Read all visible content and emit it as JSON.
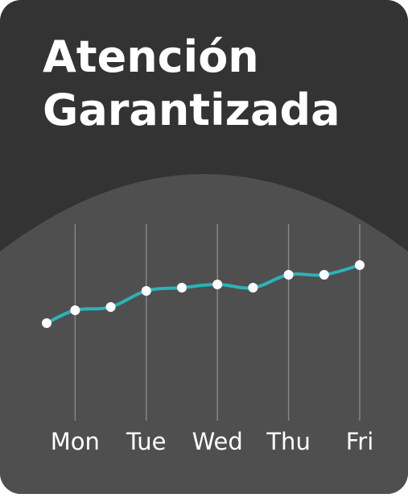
{
  "card": {
    "title_line1": "Atención",
    "title_line2": "Garantizada"
  },
  "colors": {
    "background": "#333333",
    "plot_area": "#4f4f4f",
    "line": "#2bb3b8",
    "points": "#ffffff",
    "gridlines": "#8a8a8a"
  },
  "chart_data": {
    "type": "line",
    "title": "",
    "xlabel": "",
    "ylabel": "",
    "x_ticks": [
      "Mon",
      "Tue",
      "Wed",
      "Thu",
      "Fri"
    ],
    "x_tick_positions": [
      1,
      3,
      5,
      7,
      9
    ],
    "xlim": [
      0.2,
      9
    ],
    "ylim": [
      0,
      10
    ],
    "grid": "vertical",
    "legend": "none",
    "series": [
      {
        "x": [
          0.2,
          1,
          2,
          3,
          4,
          5,
          6,
          7,
          8,
          9
        ],
        "y": [
          4.8,
          5.2,
          5.3,
          5.8,
          5.9,
          6.0,
          5.9,
          6.3,
          6.3,
          6.6
        ]
      }
    ]
  }
}
